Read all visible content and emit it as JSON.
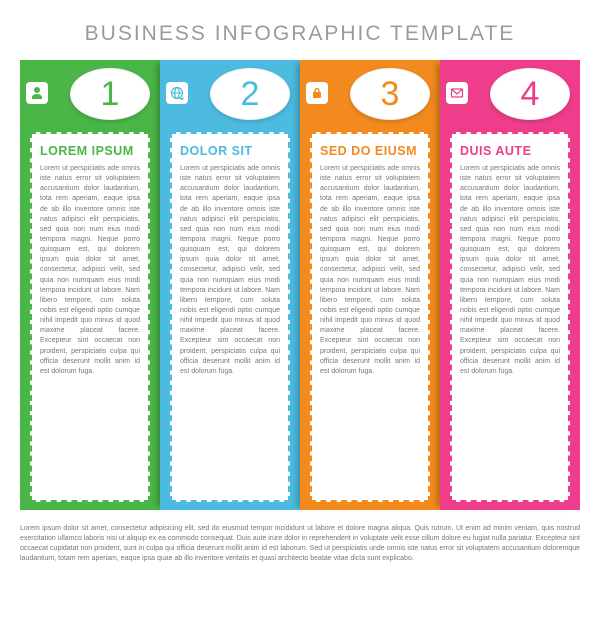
{
  "type": "infographic",
  "title": "BUSINESS INFOGRAPHIC TEMPLATE",
  "title_color": "#9b9b9b",
  "title_fontsize": 21,
  "background_color": "#ffffff",
  "body_text_color": "#777777",
  "footer_text_color": "#777777",
  "panel_shadow": "-6px 0 6px -3px rgba(0,0,0,0.25)",
  "pill_bg": "#ffffff",
  "icon_box_bg": "#ffffff",
  "panels": [
    {
      "number": "1",
      "icon": "user-icon",
      "bg_color": "#4bb648",
      "accent_color": "#4bb648",
      "dashed_border_color": "#4bb648",
      "heading": "LOREM IPSUM",
      "body": "Lorem ut perspiciatis ade omnis iste natus error sit voluptatem accusantium dolor laudantium, tota rem aperiam, eaque ipsa de ab illo inventore omnis iste natus adipisci elit perspiciatis, sed quia non num eius modi tempora magni. Neque porro quisquam est, qui dolorem ipsum quia dolor sit amet, consectetur, adipisci velit, sed quia non numquam eius modi tempora incidunt ut labore. Nam libero tempore, cum soluta nobis est eligendi optio cumque nihil impedit quo minus id quod maxime placeat facere. Excepteur sint occaecat non proident, perspiciatis culpa qui officia deserunt mollit anim id est dolorum fuga."
    },
    {
      "number": "2",
      "icon": "globe-icon",
      "bg_color": "#4dbbe0",
      "accent_color": "#4dbbe0",
      "dashed_border_color": "#4dbbe0",
      "heading": "DOLOR SIT",
      "body": "Lorem ut perspiciatis ade omnis iste natus error sit voluptatem accusantium dolor laudantium, tota rem aperiam, eaque ipsa de ab illo inventore omnis iste natus adipisci elit perspiciatis, sed quia non num eius modi tempora magni. Neque porro quisquam est, qui dolorem ipsum quia dolor sit amet, consectetur, adipisci velit, sed quia non numquam eius modi tempora incidunt ut labore. Nam libero tempore, cum soluta nobis est eligendi optio cumque nihil impedit quo minus id quod maxime placeat facere. Excepteur sint occaecat non proident, perspiciatis culpa qui officia deserunt mollit anim id est dolorum fuga."
    },
    {
      "number": "3",
      "icon": "lock-icon",
      "bg_color": "#f28a1e",
      "accent_color": "#f28a1e",
      "dashed_border_color": "#f28a1e",
      "heading": "SED DO EIUSM",
      "body": "Lorem ut perspiciatis ade omnis iste natus error sit voluptatem accusantium dolor laudantium, tota rem aperiam, eaque ipsa de ab illo inventore omnis iste natus adipisci elit perspiciatis, sed quia non num eius modi tempora magni. Neque porro quisquam est, qui dolorem ipsum quia dolor sit amet, consectetur, adipisci velit, sed quia non numquam eius modi tempora incidunt ut labore. Nam libero tempore, cum soluta nobis est eligendi optio cumque nihil impedit quo minus id quod maxime placeat facere. Excepteur sint occaecat non proident, perspiciatis culpa qui officia deserunt mollit anim id est dolorum fuga."
    },
    {
      "number": "4",
      "icon": "mail-icon",
      "bg_color": "#ed3d8b",
      "accent_color": "#ed3d8b",
      "dashed_border_color": "#ed3d8b",
      "heading": "DUIS AUTE",
      "body": "Lorem ut perspiciatis ade omnis iste natus error sit voluptatem accusantium dolor laudantium, tota rem aperiam, eaque ipsa de ab illo inventore omnis iste natus adipisci elit perspiciatis, sed quia non num eius modi tempora magni. Neque porro quisquam est, qui dolorem ipsum quia dolor sit amet, consectetur, adipisci velit, sed quia non numquam eius modi tempora incidunt ut labore. Nam libero tempore, cum soluta nobis est eligendi optio cumque nihil impedit quo minus id quod maxime placeat facere. Excepteur sint occaecat non proident, perspiciatis culpa qui officia deserunt mollit anim id est dolorum fuga."
    }
  ],
  "footer": "Lorem ipsum dolor sit amet, consectetur adipisicing elit, sed do eiusmod tempor incididunt ut labore et dolore magna aliqua. Quis rutrum. Ut enim ad minim veniam, quis nostrud exercitation ullamco laboris nisi ut aliquip ex ea commodo consequat. Duis aute irure dolor in reprehenderit in voluptate velit esse cillum dolore eu fugiat nulla pariatur. Excepteur sint occaecat cupidatat non proident, sunt in culpa qui officia deserunt mollit anim id est laborum. Sed ut perspiciatis unde omnis iste natus error sit voluptatem accusantium doloremque laudantium, totam rem aperiam, eaque ipsa quae ab illo inventore veritatis et quasi architecto beatae vitae dicta sunt explicabo."
}
